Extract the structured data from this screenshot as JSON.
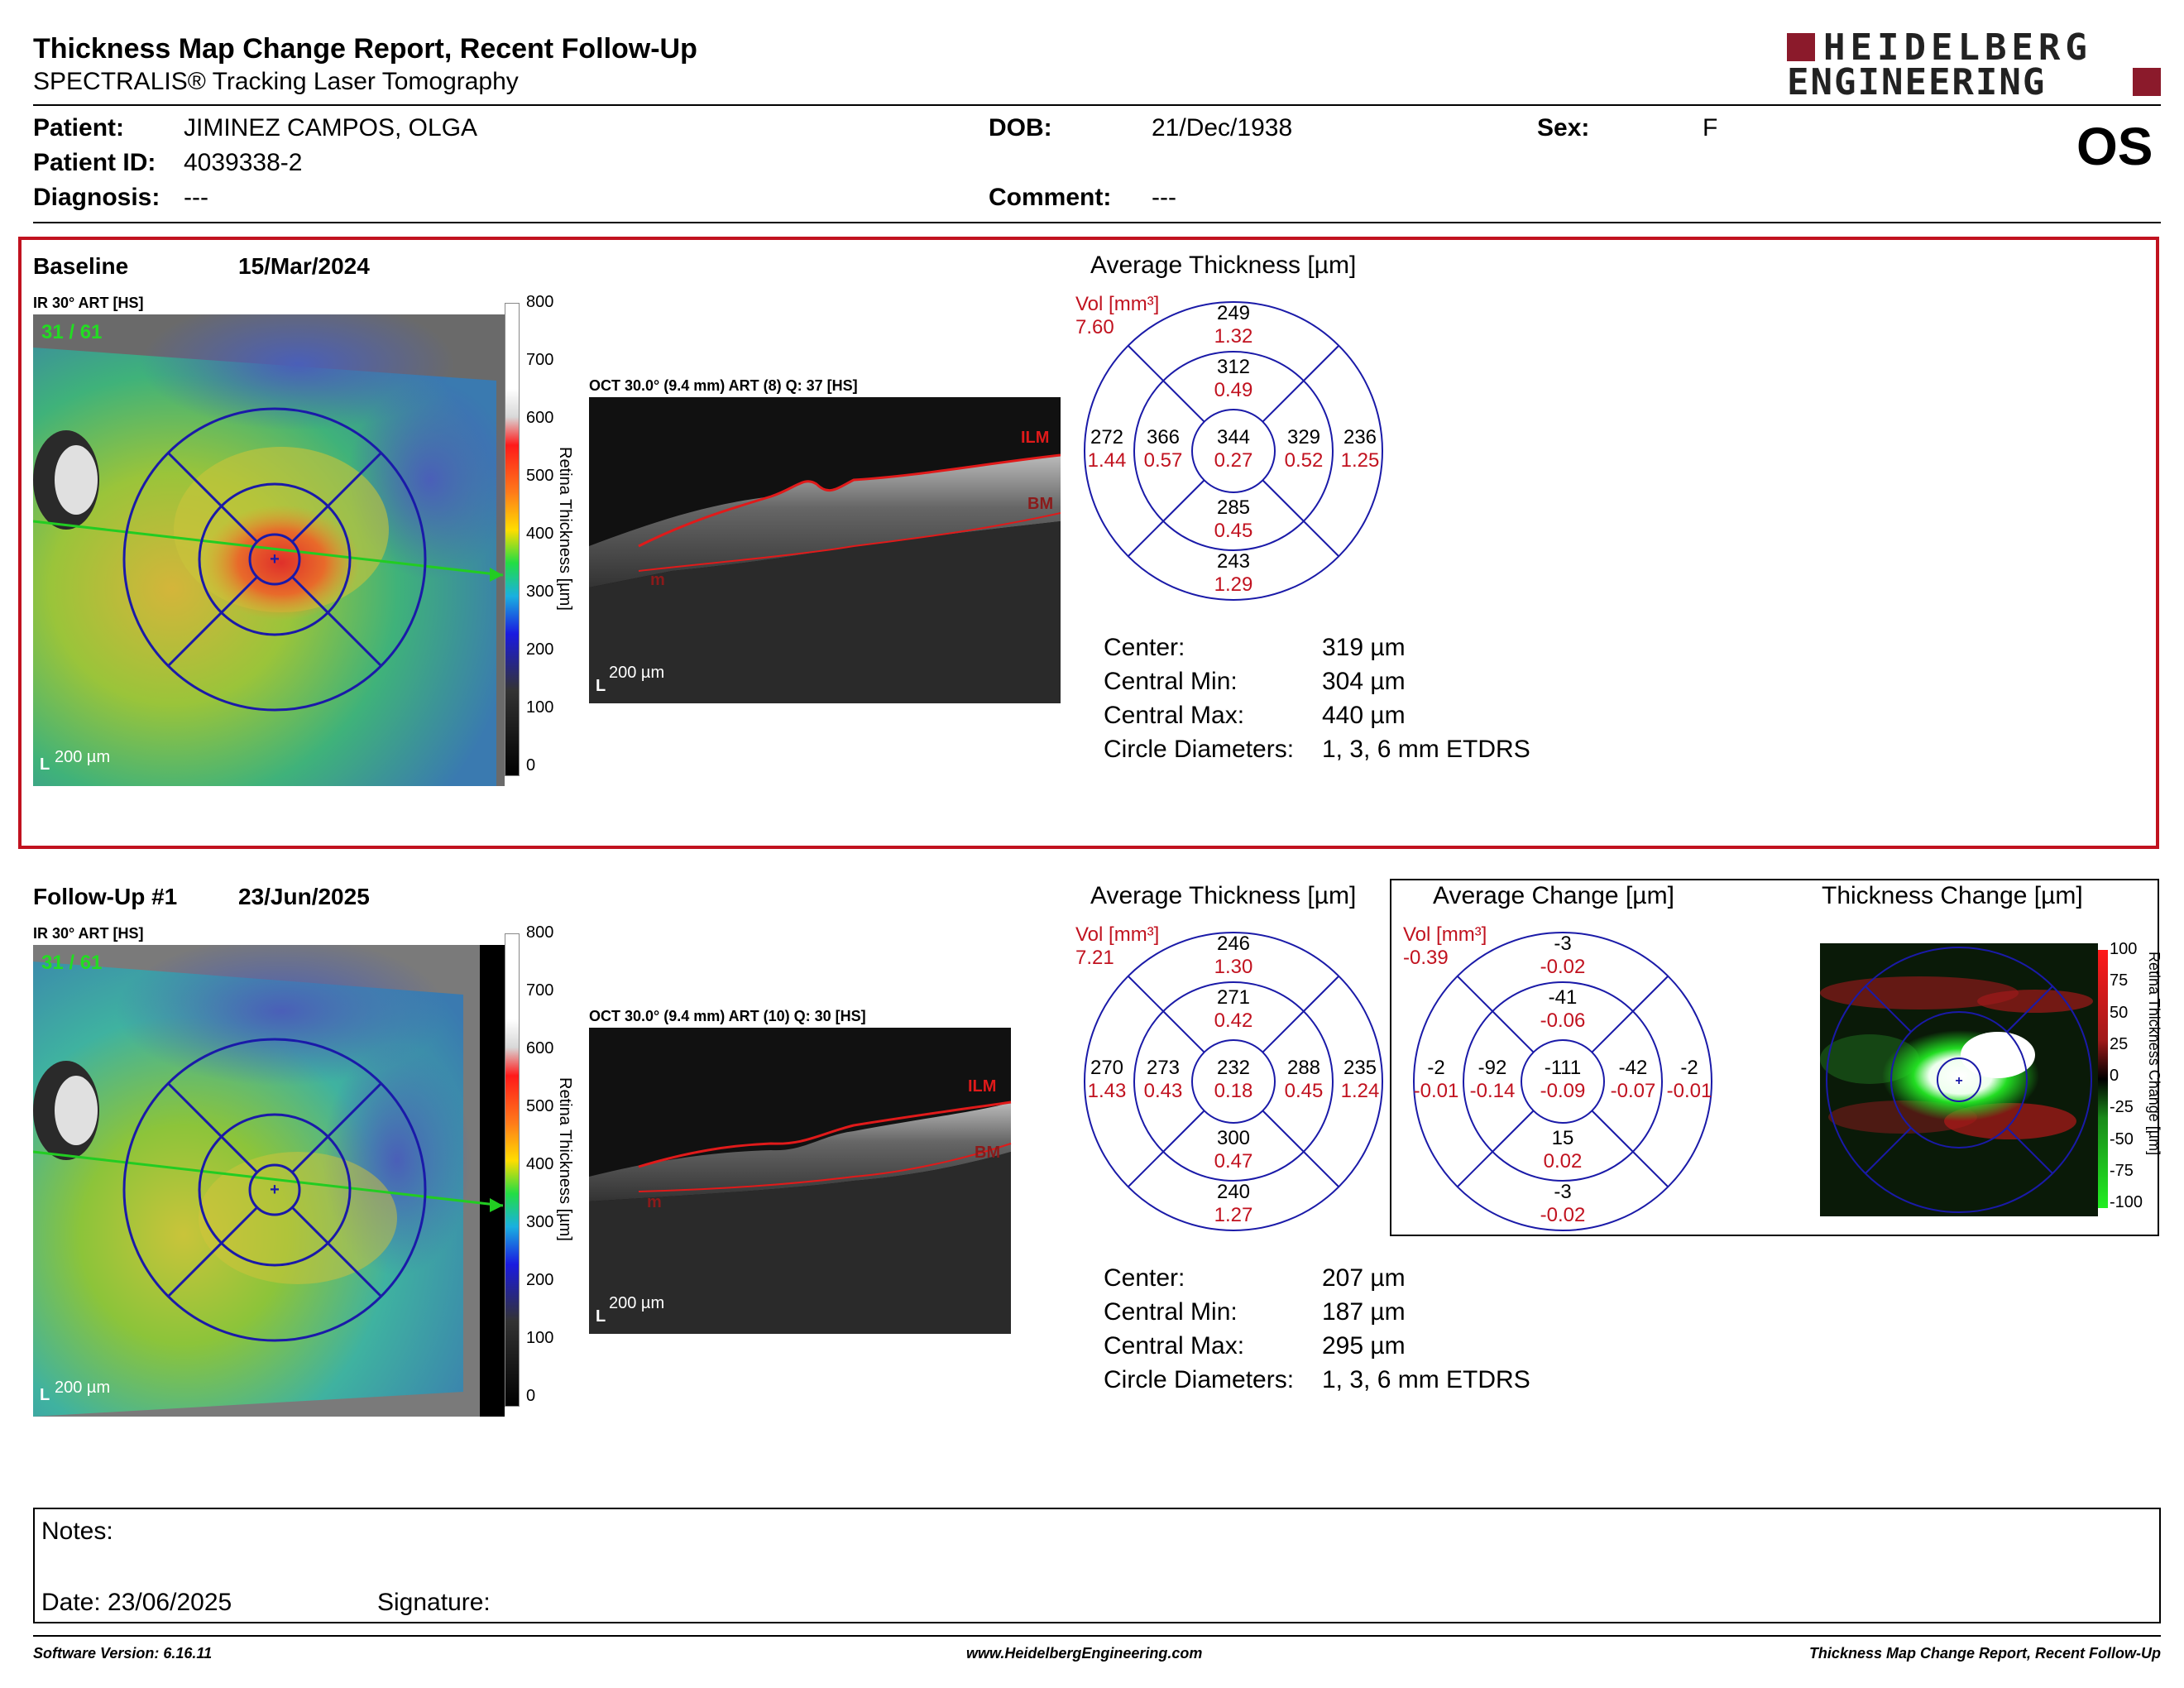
{
  "header": {
    "title": "Thickness Map Change Report, Recent Follow-Up",
    "subtitle": "SPECTRALIS® Tracking Laser Tomography",
    "logo_line1": "HEIDELBERG",
    "logo_line2": "ENGINEERING",
    "eye": "OS"
  },
  "patient": {
    "patient_label": "Patient:",
    "patient_value": "JIMINEZ CAMPOS, OLGA",
    "id_label": "Patient ID:",
    "id_value": "4039338-2",
    "diagnosis_label": "Diagnosis:",
    "diagnosis_value": "---",
    "dob_label": "DOB:",
    "dob_value": "21/Dec/1938",
    "comment_label": "Comment:",
    "comment_value": "---",
    "sex_label": "Sex:",
    "sex_value": "F"
  },
  "baseline": {
    "label": "Baseline",
    "date": "15/Mar/2024",
    "ir_label": "IR 30° ART [HS]",
    "frame": "31 / 61",
    "scale_label": "200 µm",
    "oct_label": "OCT 30.0° (9.4 mm) ART (8) Q: 37 [HS]",
    "oct_scale": "200 µm",
    "colorbar_ticks": [
      "800",
      "700",
      "600",
      "500",
      "400",
      "300",
      "200",
      "100",
      "0"
    ],
    "colorbar_title": "Retina Thickness [µm]",
    "avg_title": "Average Thickness [µm]",
    "vol_label": "Vol [mm³]",
    "vol_value": "7.60",
    "grid": {
      "center": [
        "344",
        "0.27"
      ],
      "inner_sup": [
        "312",
        "0.49"
      ],
      "inner_temp": [
        "366",
        "0.57"
      ],
      "inner_nas": [
        "329",
        "0.52"
      ],
      "inner_inf": [
        "285",
        "0.45"
      ],
      "outer_sup": [
        "249",
        "1.32"
      ],
      "outer_temp": [
        "272",
        "1.44"
      ],
      "outer_nas": [
        "236",
        "1.25"
      ],
      "outer_inf": [
        "243",
        "1.29"
      ]
    },
    "stats": [
      {
        "label": "Center:",
        "value": "319 µm"
      },
      {
        "label": "Central Min:",
        "value": "304 µm"
      },
      {
        "label": "Central Max:",
        "value": "440 µm"
      },
      {
        "label": "Circle Diameters:",
        "value": "1, 3, 6 mm ETDRS"
      }
    ]
  },
  "followup": {
    "label": "Follow-Up #1",
    "date": "23/Jun/2025",
    "ir_label": "IR 30° ART [HS]",
    "frame": "31 / 61",
    "scale_label": "200 µm",
    "oct_label": "OCT 30.0° (9.4 mm) ART (10) Q: 30 [HS]",
    "oct_scale": "200 µm",
    "colorbar_ticks": [
      "800",
      "700",
      "600",
      "500",
      "400",
      "300",
      "200",
      "100",
      "0"
    ],
    "colorbar_title": "Retina Thickness [µm]",
    "avg_title": "Average Thickness [µm]",
    "vol_label": "Vol [mm³]",
    "vol_value": "7.21",
    "grid": {
      "center": [
        "232",
        "0.18"
      ],
      "inner_sup": [
        "271",
        "0.42"
      ],
      "inner_temp": [
        "273",
        "0.43"
      ],
      "inner_nas": [
        "288",
        "0.45"
      ],
      "inner_inf": [
        "300",
        "0.47"
      ],
      "outer_sup": [
        "246",
        "1.30"
      ],
      "outer_temp": [
        "270",
        "1.43"
      ],
      "outer_nas": [
        "235",
        "1.24"
      ],
      "outer_inf": [
        "240",
        "1.27"
      ]
    },
    "change_title": "Average Change [µm]",
    "change_vol_label": "Vol [mm³]",
    "change_vol_value": "-0.39",
    "change_grid": {
      "center": [
        "-111",
        "-0.09"
      ],
      "inner_sup": [
        "-41",
        "-0.06"
      ],
      "inner_temp": [
        "-92",
        "-0.14"
      ],
      "inner_nas": [
        "-42",
        "-0.07"
      ],
      "inner_inf": [
        "15",
        "0.02"
      ],
      "outer_sup": [
        "-3",
        "-0.02"
      ],
      "outer_temp": [
        "-2",
        "-0.01"
      ],
      "outer_nas": [
        "-2",
        "-0.01"
      ],
      "outer_inf": [
        "-3",
        "-0.02"
      ]
    },
    "thick_change_title": "Thickness Change [µm]",
    "change_ticks": [
      "100",
      "75",
      "50",
      "25",
      "0",
      "-25",
      "-50",
      "-75",
      "-100"
    ],
    "change_bar_title": "Retina Thickness Change [µm]",
    "stats": [
      {
        "label": "Center:",
        "value": "207 µm"
      },
      {
        "label": "Central Min:",
        "value": "187 µm"
      },
      {
        "label": "Central Max:",
        "value": "295 µm"
      },
      {
        "label": "Circle Diameters:",
        "value": "1, 3, 6 mm ETDRS"
      }
    ]
  },
  "oct_labels": {
    "ilm": "ILM",
    "bm": "BM",
    "m": "m"
  },
  "notes": {
    "notes_label": "Notes:",
    "date_label": "Date: 23/06/2025",
    "signature_label": "Signature:"
  },
  "footer": {
    "software": "Software Version: 6.16.11",
    "website": "www.HeidelbergEngineering.com",
    "report": "Thickness Map Change Report, Recent Follow-Up"
  },
  "colors": {
    "accent": "#c1121f",
    "grid_blue": "#1a1aa8",
    "logo": "#8b1a2b"
  }
}
